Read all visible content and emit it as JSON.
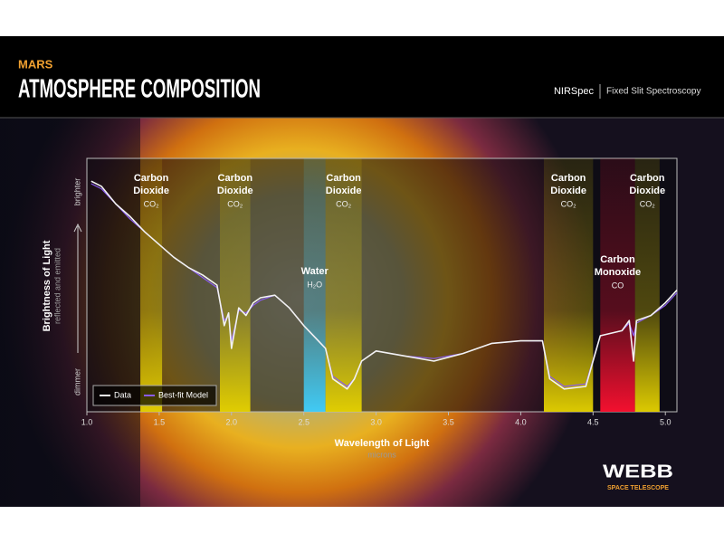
{
  "header": {
    "kicker": "MARS",
    "title": "ATMOSPHERE COMPOSITION",
    "instrument": "NIRSpec",
    "mode": "Fixed Slit Spectroscopy"
  },
  "chart_data": {
    "type": "line",
    "x_label": "Wavelength of Light",
    "x_unit": "microns",
    "y_label": "Brightness of Light",
    "y_unit": "reflected and emitted",
    "y_high": "brighter",
    "y_low": "dimmer",
    "x": [
      1.03,
      1.1,
      1.2,
      1.3,
      1.4,
      1.5,
      1.6,
      1.7,
      1.8,
      1.9,
      1.95,
      1.98,
      2.0,
      2.05,
      2.1,
      2.15,
      2.2,
      2.3,
      2.4,
      2.5,
      2.6,
      2.65,
      2.7,
      2.75,
      2.8,
      2.85,
      2.9,
      3.0,
      3.2,
      3.4,
      3.6,
      3.8,
      4.0,
      4.15,
      4.2,
      4.3,
      4.45,
      4.55,
      4.7,
      4.75,
      4.78,
      4.8,
      4.9,
      5.0,
      5.08
    ],
    "series": [
      {
        "name": "Data",
        "color": "#f2f2f2",
        "values": [
          91,
          89,
          82,
          77,
          71,
          66,
          61,
          57,
          54,
          50,
          34,
          39,
          25,
          41,
          38,
          43,
          45,
          46,
          41,
          34,
          28,
          25,
          13,
          11,
          9,
          13,
          20,
          24,
          22,
          20,
          23,
          27,
          28,
          28,
          13,
          9,
          10,
          30,
          32,
          36,
          20,
          36,
          38,
          43,
          48
        ]
      },
      {
        "name": "Best-fit Model",
        "color": "#8a5cf0",
        "values": [
          90,
          88,
          82,
          76,
          71,
          66,
          61,
          57,
          53,
          49,
          36,
          38,
          28,
          40,
          39,
          42,
          44,
          46,
          41,
          34,
          28,
          25,
          14,
          12,
          10,
          13,
          20,
          24,
          22,
          21,
          23,
          27,
          28,
          28,
          14,
          10,
          11,
          30,
          32,
          35,
          30,
          35,
          38,
          42,
          47
        ]
      }
    ],
    "xlim": [
      1.0,
      5.08
    ],
    "ylim": [
      0,
      100
    ],
    "xticks": [
      {
        "value": 1,
        "label": "1.0"
      },
      1.5,
      {
        "value": 2,
        "label": "2.0"
      },
      2.5,
      {
        "value": 3,
        "label": "3.0"
      },
      3.5,
      {
        "value": 4,
        "label": "4.0"
      },
      4.5,
      {
        "value": 5,
        "label": "5.0"
      }
    ],
    "bands": [
      {
        "label": [
          "Carbon",
          "Dioxide"
        ],
        "formula": "CO₂",
        "xrange": [
          1.37,
          1.52
        ],
        "color": "#e6d300"
      },
      {
        "label": [
          "Carbon",
          "Dioxide"
        ],
        "formula": "CO₂",
        "xrange": [
          1.92,
          2.13
        ],
        "color": "#e6d300"
      },
      {
        "label": [
          "Water"
        ],
        "formula": "H₂O",
        "xrange": [
          2.5,
          2.65
        ],
        "color": "#3fd0ff"
      },
      {
        "label": [
          "Carbon",
          "Dioxide"
        ],
        "formula": "CO₂",
        "xrange": [
          2.65,
          2.9
        ],
        "color": "#e6d300"
      },
      {
        "label": [
          "Carbon",
          "Dioxide"
        ],
        "formula": "CO₂",
        "xrange": [
          4.16,
          4.5
        ],
        "color": "#e6d300"
      },
      {
        "label": [
          "Carbon",
          "Monoxide"
        ],
        "formula": "CO",
        "xrange": [
          4.55,
          4.79
        ],
        "color": "#ff1030"
      },
      {
        "label": [
          "Carbon",
          "Dioxide"
        ],
        "formula": "CO₂",
        "xrange": [
          4.79,
          4.96
        ],
        "color": "#e6d300"
      }
    ],
    "legend": "lower left"
  },
  "logo": {
    "name": "WEBB",
    "subtitle": "SPACE TELESCOPE"
  }
}
